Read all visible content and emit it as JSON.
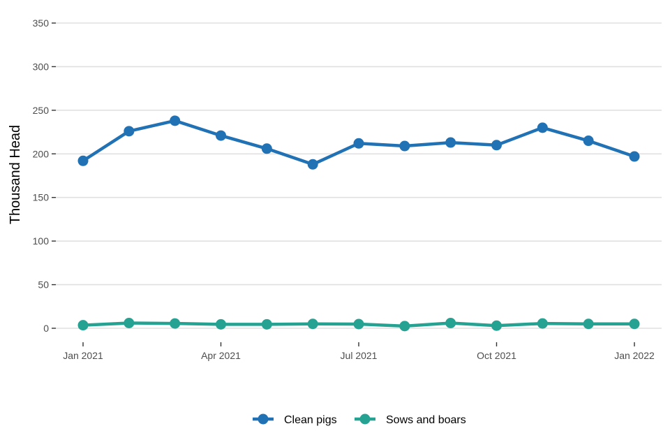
{
  "chart_data": {
    "type": "line",
    "title": "",
    "xlabel": "",
    "ylabel": "Thousand Head",
    "x": [
      "2021-01",
      "2021-02",
      "2021-03",
      "2021-04",
      "2021-05",
      "2021-06",
      "2021-07",
      "2021-08",
      "2021-09",
      "2021-10",
      "2021-11",
      "2021-12",
      "2022-01"
    ],
    "ylim": [
      0,
      350
    ],
    "yticks": [
      0,
      50,
      100,
      150,
      200,
      250,
      300,
      350
    ],
    "xticks": [
      {
        "x": "2021-01",
        "label": "Jan 2021"
      },
      {
        "x": "2021-04",
        "label": "Apr 2021"
      },
      {
        "x": "2021-07",
        "label": "Jul 2021"
      },
      {
        "x": "2021-10",
        "label": "Oct 2021"
      },
      {
        "x": "2022-01",
        "label": "Jan 2022"
      }
    ],
    "grid": true,
    "legend_position": "bottom",
    "series": [
      {
        "name": "Clean pigs",
        "color": "#2171b5",
        "values": [
          192,
          226,
          238,
          221,
          206,
          188,
          212,
          209,
          213,
          210,
          230,
          215,
          197
        ]
      },
      {
        "name": "Sows and boars",
        "color": "#26a293",
        "values": [
          3.5,
          6,
          5.5,
          4.5,
          4.5,
          5,
          4.8,
          2.5,
          6,
          3,
          5.5,
          5,
          5
        ]
      }
    ]
  }
}
